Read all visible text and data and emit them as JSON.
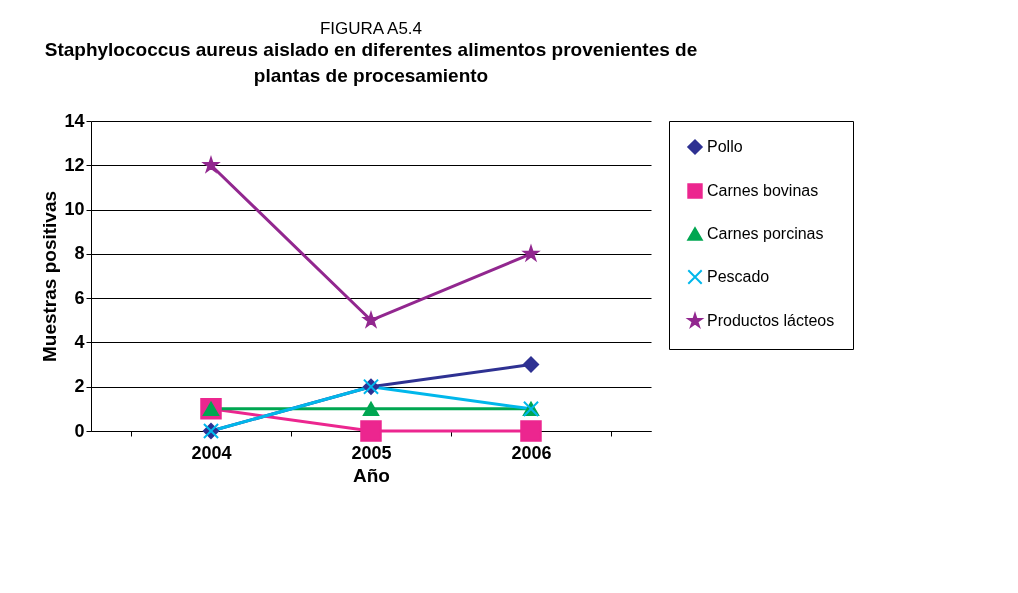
{
  "chart_data": {
    "type": "line",
    "title": "FIGURA A5.4",
    "subtitle": "Staphylococcus aureus aislado en diferentes alimentos provenientes de plantas de procesamiento",
    "xlabel": "Año",
    "ylabel": "Muestras positivas",
    "categories": [
      "2004",
      "2005",
      "2006"
    ],
    "series": [
      {
        "name": "Pollo",
        "color": "#2e3192",
        "marker": "diamond",
        "values": [
          0,
          2,
          3
        ]
      },
      {
        "name": "Carnes bovinas",
        "color": "#ec268f",
        "marker": "square",
        "values": [
          1,
          0,
          0
        ]
      },
      {
        "name": "Carnes porcinas",
        "color": "#00a651",
        "marker": "triangle",
        "values": [
          1,
          1,
          1
        ]
      },
      {
        "name": "Pescado",
        "color": "#00b7eb",
        "marker": "cross",
        "values": [
          0,
          2,
          1
        ]
      },
      {
        "name": "Productos lácteos",
        "color": "#92278f",
        "marker": "star",
        "values": [
          12,
          5,
          8
        ]
      }
    ],
    "ylim": [
      0,
      14
    ],
    "yticks": [
      0,
      2,
      4,
      6,
      8,
      10,
      12,
      14
    ],
    "grid": "y",
    "legend": "right"
  }
}
